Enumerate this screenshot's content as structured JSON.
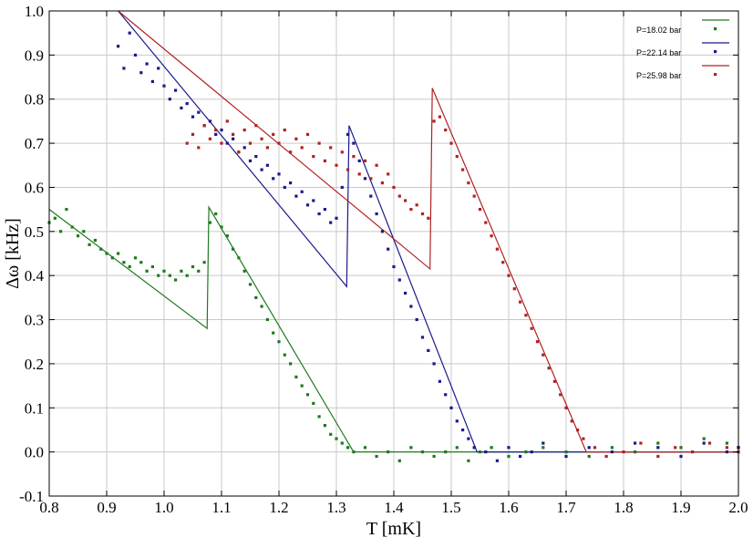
{
  "chart_data": {
    "type": "scatter",
    "title": "",
    "xlabel": "T [mK]",
    "ylabel": "Δω [kHz]",
    "xlim": [
      0.8,
      2.0
    ],
    "ylim": [
      -0.1,
      1.0
    ],
    "x_ticks": [
      "0.8",
      "0.9",
      "1.0",
      "1.1",
      "1.2",
      "1.3",
      "1.4",
      "1.5",
      "1.6",
      "1.7",
      "1.8",
      "1.9",
      "2.0"
    ],
    "y_ticks": [
      "-0.1",
      "0.0",
      "0.1",
      "0.2",
      "0.3",
      "0.4",
      "0.5",
      "0.6",
      "0.7",
      "0.8",
      "0.9",
      "1.0"
    ],
    "grid": true,
    "legend": "top-right",
    "series": [
      {
        "name": "P=18.02 bar",
        "color": "#1e7a1e",
        "fit_line": [
          [
            0.8,
            0.55
          ],
          [
            1.075,
            0.28
          ],
          [
            1.078,
            0.555
          ],
          [
            1.33,
            0.0
          ],
          [
            2.0,
            0.0
          ]
        ],
        "points": [
          [
            0.8,
            0.52
          ],
          [
            0.81,
            0.53
          ],
          [
            0.82,
            0.5
          ],
          [
            0.83,
            0.55
          ],
          [
            0.84,
            0.51
          ],
          [
            0.85,
            0.49
          ],
          [
            0.86,
            0.5
          ],
          [
            0.87,
            0.47
          ],
          [
            0.88,
            0.48
          ],
          [
            0.89,
            0.46
          ],
          [
            0.9,
            0.45
          ],
          [
            0.91,
            0.44
          ],
          [
            0.92,
            0.45
          ],
          [
            0.93,
            0.43
          ],
          [
            0.94,
            0.42
          ],
          [
            0.95,
            0.44
          ],
          [
            0.96,
            0.43
          ],
          [
            0.97,
            0.41
          ],
          [
            0.98,
            0.42
          ],
          [
            0.99,
            0.4
          ],
          [
            1.0,
            0.41
          ],
          [
            1.01,
            0.4
          ],
          [
            1.02,
            0.39
          ],
          [
            1.03,
            0.41
          ],
          [
            1.04,
            0.4
          ],
          [
            1.05,
            0.42
          ],
          [
            1.06,
            0.41
          ],
          [
            1.07,
            0.43
          ],
          [
            1.08,
            0.52
          ],
          [
            1.09,
            0.54
          ],
          [
            1.1,
            0.51
          ],
          [
            1.11,
            0.49
          ],
          [
            1.12,
            0.46
          ],
          [
            1.13,
            0.44
          ],
          [
            1.14,
            0.41
          ],
          [
            1.15,
            0.38
          ],
          [
            1.16,
            0.35
          ],
          [
            1.17,
            0.33
          ],
          [
            1.18,
            0.3
          ],
          [
            1.19,
            0.27
          ],
          [
            1.2,
            0.25
          ],
          [
            1.21,
            0.22
          ],
          [
            1.22,
            0.2
          ],
          [
            1.23,
            0.17
          ],
          [
            1.24,
            0.15
          ],
          [
            1.25,
            0.13
          ],
          [
            1.26,
            0.11
          ],
          [
            1.27,
            0.08
          ],
          [
            1.28,
            0.06
          ],
          [
            1.29,
            0.04
          ],
          [
            1.3,
            0.03
          ],
          [
            1.31,
            0.02
          ],
          [
            1.32,
            0.01
          ],
          [
            1.33,
            0.0
          ],
          [
            1.35,
            0.01
          ],
          [
            1.37,
            -0.01
          ],
          [
            1.39,
            0.0
          ],
          [
            1.41,
            -0.02
          ],
          [
            1.43,
            0.01
          ],
          [
            1.45,
            0.0
          ],
          [
            1.47,
            -0.01
          ],
          [
            1.49,
            0.0
          ],
          [
            1.51,
            0.01
          ],
          [
            1.53,
            -0.02
          ],
          [
            1.55,
            0.0
          ],
          [
            1.57,
            0.01
          ],
          [
            1.6,
            -0.01
          ],
          [
            1.63,
            0.0
          ],
          [
            1.66,
            0.01
          ],
          [
            1.7,
            0.0
          ],
          [
            1.74,
            -0.01
          ],
          [
            1.78,
            0.01
          ],
          [
            1.82,
            0.0
          ],
          [
            1.86,
            0.02
          ],
          [
            1.9,
            0.01
          ],
          [
            1.94,
            0.03
          ],
          [
            1.98,
            0.02
          ],
          [
            2.0,
            0.01
          ]
        ]
      },
      {
        "name": "P=22.14 bar",
        "color": "#1a1a8c",
        "fit_line": [
          [
            0.92,
            1.0
          ],
          [
            1.318,
            0.375
          ],
          [
            1.322,
            0.74
          ],
          [
            1.545,
            0.0
          ],
          [
            2.0,
            0.0
          ]
        ],
        "points": [
          [
            0.92,
            0.92
          ],
          [
            0.93,
            0.87
          ],
          [
            0.94,
            0.95
          ],
          [
            0.95,
            0.9
          ],
          [
            0.96,
            0.86
          ],
          [
            0.97,
            0.88
          ],
          [
            0.98,
            0.84
          ],
          [
            0.99,
            0.87
          ],
          [
            1.0,
            0.83
          ],
          [
            1.01,
            0.8
          ],
          [
            1.02,
            0.82
          ],
          [
            1.03,
            0.78
          ],
          [
            1.04,
            0.79
          ],
          [
            1.05,
            0.76
          ],
          [
            1.06,
            0.77
          ],
          [
            1.07,
            0.74
          ],
          [
            1.08,
            0.75
          ],
          [
            1.09,
            0.72
          ],
          [
            1.1,
            0.73
          ],
          [
            1.11,
            0.7
          ],
          [
            1.12,
            0.71
          ],
          [
            1.13,
            0.68
          ],
          [
            1.14,
            0.69
          ],
          [
            1.15,
            0.66
          ],
          [
            1.16,
            0.67
          ],
          [
            1.17,
            0.64
          ],
          [
            1.18,
            0.65
          ],
          [
            1.19,
            0.62
          ],
          [
            1.2,
            0.63
          ],
          [
            1.21,
            0.6
          ],
          [
            1.22,
            0.61
          ],
          [
            1.23,
            0.58
          ],
          [
            1.24,
            0.59
          ],
          [
            1.25,
            0.56
          ],
          [
            1.26,
            0.57
          ],
          [
            1.27,
            0.54
          ],
          [
            1.28,
            0.55
          ],
          [
            1.29,
            0.52
          ],
          [
            1.3,
            0.53
          ],
          [
            1.31,
            0.6
          ],
          [
            1.32,
            0.72
          ],
          [
            1.33,
            0.7
          ],
          [
            1.34,
            0.66
          ],
          [
            1.35,
            0.62
          ],
          [
            1.36,
            0.58
          ],
          [
            1.37,
            0.54
          ],
          [
            1.38,
            0.5
          ],
          [
            1.39,
            0.46
          ],
          [
            1.4,
            0.42
          ],
          [
            1.41,
            0.39
          ],
          [
            1.42,
            0.36
          ],
          [
            1.43,
            0.33
          ],
          [
            1.44,
            0.3
          ],
          [
            1.45,
            0.26
          ],
          [
            1.46,
            0.23
          ],
          [
            1.47,
            0.2
          ],
          [
            1.48,
            0.16
          ],
          [
            1.49,
            0.13
          ],
          [
            1.5,
            0.1
          ],
          [
            1.51,
            0.07
          ],
          [
            1.52,
            0.05
          ],
          [
            1.53,
            0.03
          ],
          [
            1.54,
            0.01
          ],
          [
            1.56,
            0.0
          ],
          [
            1.58,
            -0.02
          ],
          [
            1.6,
            0.01
          ],
          [
            1.62,
            -0.01
          ],
          [
            1.64,
            0.0
          ],
          [
            1.66,
            0.02
          ],
          [
            1.7,
            -0.01
          ],
          [
            1.74,
            0.01
          ],
          [
            1.78,
            0.0
          ],
          [
            1.82,
            0.02
          ],
          [
            1.86,
            0.01
          ],
          [
            1.9,
            -0.01
          ],
          [
            1.94,
            0.02
          ],
          [
            1.98,
            0.0
          ],
          [
            2.0,
            0.01
          ]
        ]
      },
      {
        "name": "P=25.98 bar",
        "color": "#b22222",
        "fit_line": [
          [
            0.92,
            1.0
          ],
          [
            1.463,
            0.415
          ],
          [
            1.467,
            0.825
          ],
          [
            1.735,
            0.0
          ],
          [
            2.0,
            0.0
          ]
        ],
        "points": [
          [
            1.04,
            0.7
          ],
          [
            1.05,
            0.72
          ],
          [
            1.06,
            0.69
          ],
          [
            1.07,
            0.74
          ],
          [
            1.08,
            0.71
          ],
          [
            1.09,
            0.73
          ],
          [
            1.1,
            0.7
          ],
          [
            1.11,
            0.75
          ],
          [
            1.12,
            0.72
          ],
          [
            1.13,
            0.68
          ],
          [
            1.14,
            0.73
          ],
          [
            1.15,
            0.7
          ],
          [
            1.16,
            0.74
          ],
          [
            1.17,
            0.71
          ],
          [
            1.18,
            0.69
          ],
          [
            1.19,
            0.72
          ],
          [
            1.2,
            0.7
          ],
          [
            1.21,
            0.73
          ],
          [
            1.22,
            0.68
          ],
          [
            1.23,
            0.71
          ],
          [
            1.24,
            0.69
          ],
          [
            1.25,
            0.72
          ],
          [
            1.26,
            0.67
          ],
          [
            1.27,
            0.7
          ],
          [
            1.28,
            0.66
          ],
          [
            1.29,
            0.69
          ],
          [
            1.3,
            0.65
          ],
          [
            1.31,
            0.68
          ],
          [
            1.32,
            0.64
          ],
          [
            1.33,
            0.67
          ],
          [
            1.34,
            0.63
          ],
          [
            1.35,
            0.66
          ],
          [
            1.36,
            0.62
          ],
          [
            1.37,
            0.65
          ],
          [
            1.38,
            0.61
          ],
          [
            1.39,
            0.63
          ],
          [
            1.4,
            0.6
          ],
          [
            1.41,
            0.58
          ],
          [
            1.42,
            0.57
          ],
          [
            1.43,
            0.55
          ],
          [
            1.44,
            0.56
          ],
          [
            1.45,
            0.54
          ],
          [
            1.46,
            0.53
          ],
          [
            1.47,
            0.75
          ],
          [
            1.48,
            0.76
          ],
          [
            1.49,
            0.73
          ],
          [
            1.5,
            0.7
          ],
          [
            1.51,
            0.67
          ],
          [
            1.52,
            0.64
          ],
          [
            1.53,
            0.61
          ],
          [
            1.54,
            0.58
          ],
          [
            1.55,
            0.55
          ],
          [
            1.56,
            0.52
          ],
          [
            1.57,
            0.49
          ],
          [
            1.58,
            0.46
          ],
          [
            1.59,
            0.43
          ],
          [
            1.6,
            0.4
          ],
          [
            1.61,
            0.37
          ],
          [
            1.62,
            0.34
          ],
          [
            1.63,
            0.31
          ],
          [
            1.64,
            0.28
          ],
          [
            1.65,
            0.25
          ],
          [
            1.66,
            0.22
          ],
          [
            1.67,
            0.19
          ],
          [
            1.68,
            0.16
          ],
          [
            1.69,
            0.13
          ],
          [
            1.7,
            0.1
          ],
          [
            1.71,
            0.07
          ],
          [
            1.72,
            0.05
          ],
          [
            1.73,
            0.03
          ],
          [
            1.75,
            0.01
          ],
          [
            1.77,
            -0.01
          ],
          [
            1.8,
            0.0
          ],
          [
            1.83,
            0.02
          ],
          [
            1.86,
            -0.01
          ],
          [
            1.89,
            0.01
          ],
          [
            1.92,
            0.0
          ],
          [
            1.95,
            0.02
          ],
          [
            1.98,
            0.01
          ],
          [
            2.0,
            0.0
          ]
        ]
      }
    ]
  }
}
